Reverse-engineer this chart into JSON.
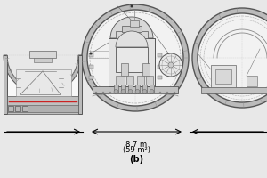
{
  "fig_bg": "#e8e8e8",
  "tunnel_wall": "#bbbbbb",
  "tunnel_wall_edge": "#555555",
  "tunnel_inner_bg": "#f2f2f2",
  "dim_text": "8.7 m",
  "dim_text2": "(59 m²)",
  "label_b": "(b)",
  "label_fontsize": 7,
  "dim_fontsize": 6,
  "anno_color": "#111111",
  "red_color": "#cc2222",
  "gray_dark": "#666666",
  "gray_med": "#aaaaaa",
  "gray_light": "#cccccc",
  "gray_lighter": "#e0e0e0",
  "white": "#f8f8f8"
}
